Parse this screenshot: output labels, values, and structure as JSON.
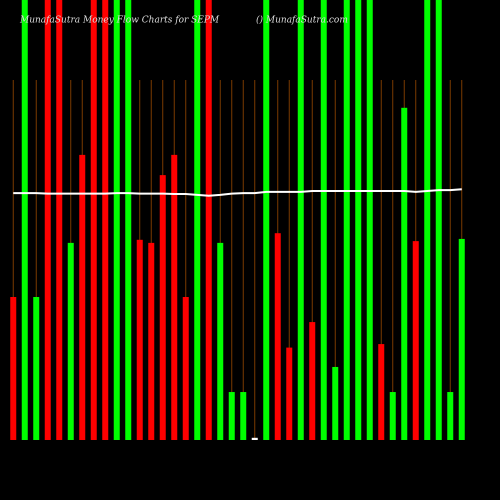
{
  "chart_data": {
    "type": "bar",
    "title": "MunafaSutra Money Flow Charts for SEPM",
    "subtitle": "() MunafaSutra.com",
    "ylim": [
      0,
      100
    ],
    "values": [
      32.5,
      100,
      32.5,
      100,
      100,
      44.8,
      64.8,
      100,
      100,
      100,
      100,
      45.5,
      44.8,
      60.2,
      64.8,
      32.5,
      100,
      100,
      44.8,
      10.9,
      10.9,
      0.5,
      100,
      47,
      21,
      100,
      26.8,
      100,
      16.6,
      100,
      100,
      100,
      21.8,
      10.9,
      75.5,
      45.2,
      100,
      100,
      10.9,
      45.7
    ],
    "colors": [
      "#ff0000",
      "#00ff00",
      "#00ff00",
      "#ff0000",
      "#ff0000",
      "#00ff00",
      "#ff0000",
      "#ff0000",
      "#ff0000",
      "#00ff00",
      "#00ff00",
      "#ff0000",
      "#ff0000",
      "#ff0000",
      "#ff0000",
      "#ff0000",
      "#00ff00",
      "#ff0000",
      "#00ff00",
      "#00ff00",
      "#00ff00",
      "#ffffff",
      "#00ff00",
      "#ff0000",
      "#ff0000",
      "#00ff00",
      "#ff0000",
      "#00ff00",
      "#00ff00",
      "#00ff00",
      "#00ff00",
      "#00ff00",
      "#ff0000",
      "#00ff00",
      "#00ff00",
      "#ff0000",
      "#00ff00",
      "#00ff00",
      "#00ff00",
      "#00ff00"
    ],
    "line_values": [
      56.1,
      56.1,
      56.1,
      56,
      56,
      56,
      56,
      56,
      56,
      56.1,
      56.1,
      56,
      56,
      56,
      55.9,
      55.9,
      55.7,
      55.5,
      55.7,
      56,
      56.1,
      56.1,
      56.4,
      56.4,
      56.4,
      56.4,
      56.6,
      56.6,
      56.6,
      56.6,
      56.6,
      56.6,
      56.6,
      56.6,
      56.6,
      56.4,
      56.6,
      56.8,
      56.8,
      57
    ]
  }
}
